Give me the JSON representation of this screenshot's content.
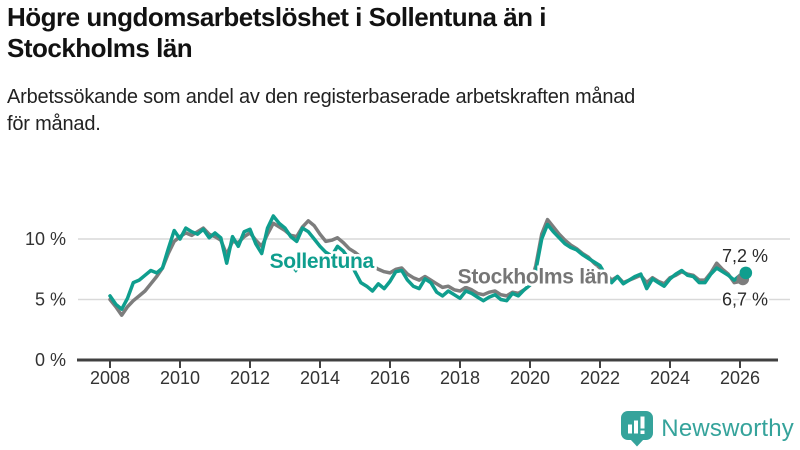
{
  "header": {
    "title_lines": [
      "Högre ungdomsarbetslöshet i Sollentuna än i",
      "Stockholms län"
    ],
    "subtitle_lines": [
      "Arbetssökande som andel av den registerbaserade arbetskraften månad",
      "för månad."
    ]
  },
  "branding": {
    "logo_text": "Newsworthy",
    "logo_color": "#35a39b",
    "logo_icon": "bar-chart-speech-bubble-icon"
  },
  "colors": {
    "sollentuna": "#0f9e8e",
    "stockholm_line": "#7d7d7d",
    "stockholm_label": "#767676",
    "gridline": "#d9d9d9",
    "axis": "#404040",
    "tick_label": "#333333",
    "value_label": "#2b2b2b"
  },
  "chart_data": {
    "type": "line",
    "title": "Högre ungdomsarbetslöshet i Sollentuna än i Stockholms län",
    "subtitle": "Arbetssökande som andel av den registerbaserade arbetskraften månad för månad.",
    "xlabel": "",
    "ylabel": "",
    "grid": "horizontal-only",
    "x_range": [
      2008.0,
      2026.17
    ],
    "ylim": [
      0,
      12.5
    ],
    "x_ticks": [
      2008,
      2010,
      2012,
      2014,
      2016,
      2018,
      2020,
      2022,
      2024,
      2026
    ],
    "y_ticks": [
      {
        "value": 0,
        "label": "0 %"
      },
      {
        "value": 5,
        "label": "5 %"
      },
      {
        "value": 10,
        "label": "10 %"
      }
    ],
    "legend_position": "labels-on-lines",
    "series": [
      {
        "name": "Stockholms län",
        "color": "#7d7d7d",
        "label_color": "#767676",
        "start_year": 2008,
        "step_months": 2,
        "end_dot": true,
        "line_label": {
          "text": "Stockholms län",
          "year": 2020.09,
          "value": 6.9
        },
        "end_label": {
          "text": "6,7 %",
          "year": 2026.8,
          "value": 5.0
        },
        "values": [
          5.0,
          4.4,
          3.7,
          4.4,
          4.9,
          5.3,
          5.7,
          6.3,
          6.9,
          7.6,
          8.8,
          9.8,
          10.2,
          10.5,
          10.3,
          10.6,
          10.9,
          10.4,
          10.2,
          9.9,
          8.7,
          9.8,
          9.7,
          10.2,
          10.5,
          9.9,
          9.4,
          10.4,
          11.3,
          11.0,
          10.7,
          10.3,
          10.2,
          11.0,
          11.5,
          11.1,
          10.4,
          9.8,
          9.9,
          10.1,
          9.7,
          9.2,
          8.9,
          8.5,
          8.1,
          7.8,
          7.5,
          7.3,
          7.2,
          7.5,
          7.6,
          7.1,
          6.8,
          6.6,
          6.9,
          6.6,
          6.3,
          6.0,
          6.1,
          5.8,
          5.7,
          6.0,
          5.8,
          5.5,
          5.4,
          5.6,
          5.7,
          5.4,
          5.3,
          5.6,
          5.5,
          5.8,
          6.2,
          7.8,
          10.4,
          11.6,
          11.0,
          10.4,
          9.9,
          9.5,
          9.2,
          8.8,
          8.5,
          8.0,
          7.6,
          7.1,
          6.6,
          6.9,
          6.4,
          6.6,
          6.8,
          7.0,
          6.4,
          6.8,
          6.5,
          6.3,
          6.8,
          7.0,
          7.3,
          7.1,
          7.0,
          6.6,
          6.6,
          7.2,
          8.0,
          7.5,
          7.1,
          6.4,
          6.5,
          6.7
        ]
      },
      {
        "name": "Sollentuna",
        "color": "#0f9e8e",
        "label_color": "#0f9e8e",
        "start_year": 2008,
        "step_months": 2,
        "end_dot": true,
        "line_label": {
          "text": "Sollentuna",
          "year": 2014.05,
          "value": 8.2,
          "pointer": {
            "year": 2013.31,
            "value": 7.2
          }
        },
        "end_label": {
          "text": "7,2 %",
          "year": 2026.8,
          "value": 8.6
        },
        "values": [
          5.3,
          4.6,
          4.2,
          5.1,
          6.4,
          6.6,
          7.0,
          7.4,
          7.2,
          7.6,
          9.2,
          10.7,
          10.0,
          10.9,
          10.6,
          10.4,
          10.8,
          10.1,
          10.5,
          10.1,
          8.0,
          10.2,
          9.4,
          10.6,
          10.8,
          9.6,
          8.8,
          10.9,
          11.9,
          11.3,
          10.9,
          10.2,
          9.8,
          10.9,
          10.6,
          10.0,
          9.4,
          8.9,
          8.6,
          9.4,
          9.0,
          8.3,
          7.3,
          6.4,
          6.1,
          5.7,
          6.3,
          5.9,
          6.5,
          7.3,
          7.4,
          6.6,
          6.1,
          5.9,
          6.7,
          6.4,
          5.6,
          5.3,
          5.7,
          5.4,
          5.1,
          5.7,
          5.5,
          5.2,
          4.9,
          5.2,
          5.4,
          5.0,
          4.9,
          5.5,
          5.3,
          5.8,
          6.2,
          7.4,
          10.0,
          11.2,
          10.6,
          10.1,
          9.6,
          9.3,
          9.1,
          8.7,
          8.4,
          8.1,
          7.8,
          7.0,
          6.4,
          6.9,
          6.3,
          6.6,
          6.9,
          7.1,
          5.9,
          6.7,
          6.4,
          6.1,
          6.7,
          7.1,
          7.4,
          7.0,
          6.9,
          6.4,
          6.4,
          7.1,
          7.6,
          7.3,
          7.0,
          6.6,
          7.0,
          7.2
        ]
      }
    ]
  }
}
